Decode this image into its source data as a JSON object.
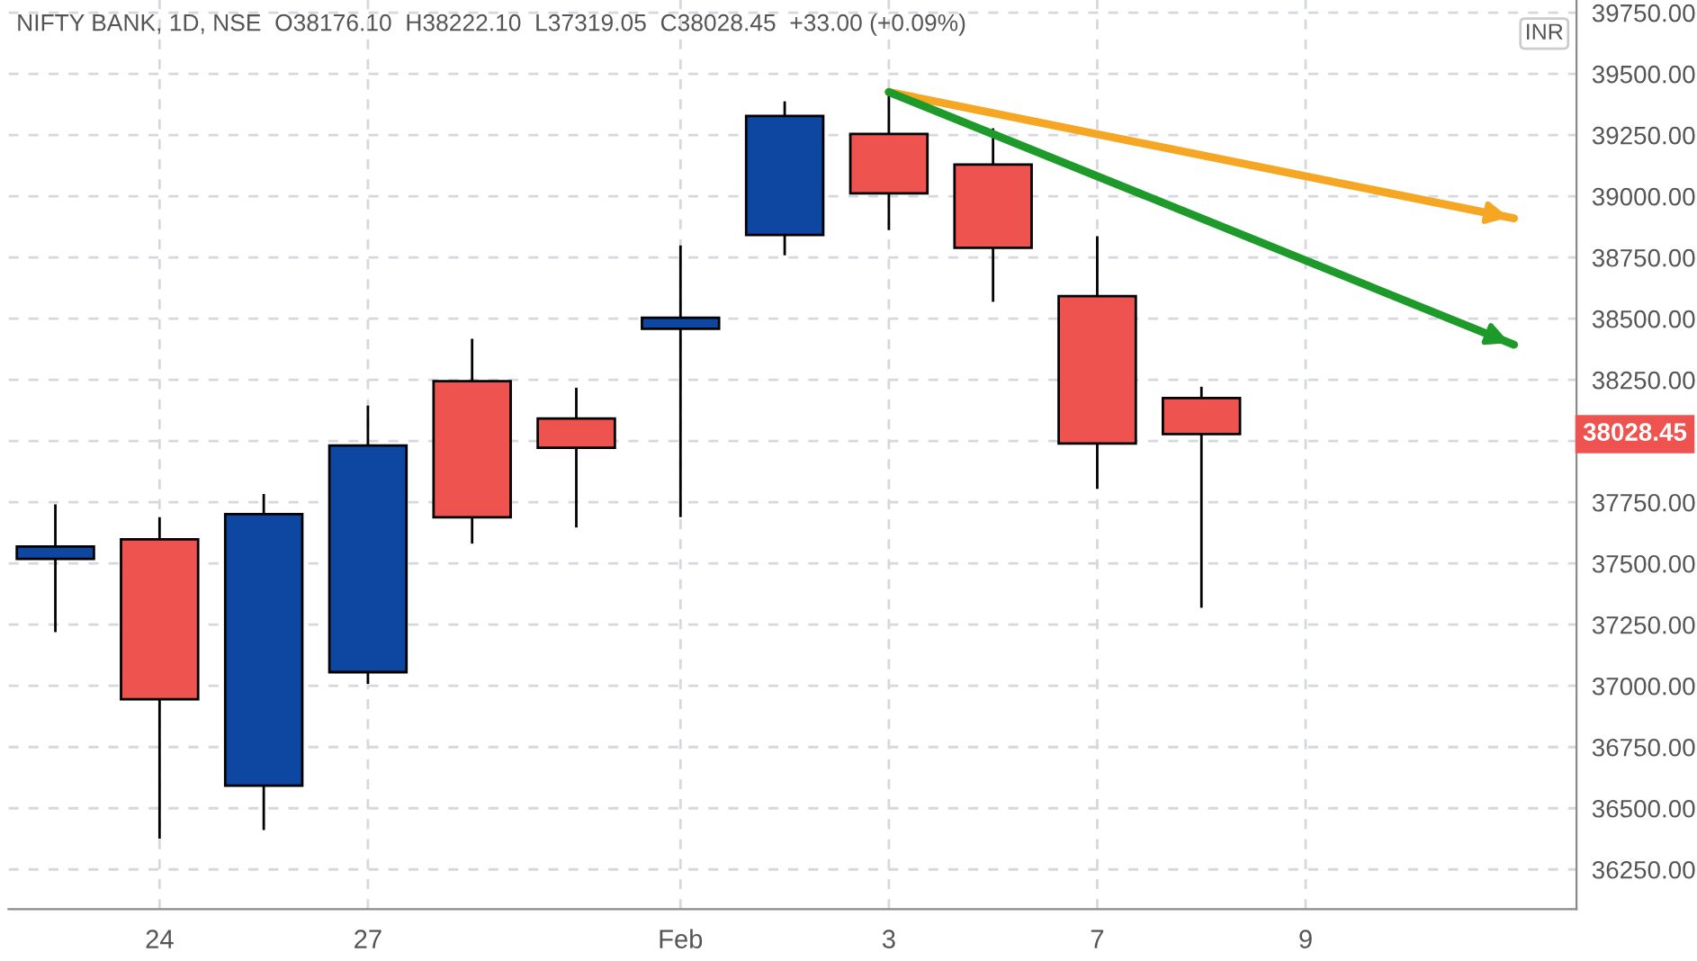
{
  "chart_data": {
    "type": "candlestick",
    "title": "NIFTY BANK, 1D, NSE  O38176.10  H38222.10  L37319.05  C38028.45  +33.00 (+0.09%)",
    "categories": [
      null,
      "24",
      null,
      "27",
      null,
      null,
      "Feb",
      null,
      "3",
      null,
      "7",
      null,
      "9",
      null,
      null
    ],
    "ohlc": [
      [
        37519,
        37742,
        37220,
        37569
      ],
      [
        37599,
        37689,
        36376,
        36945
      ],
      [
        36592,
        37784,
        36411,
        37702
      ],
      [
        37056,
        38145,
        37008,
        37982
      ],
      [
        38245,
        38418,
        37581,
        37689
      ],
      [
        38092,
        38218,
        37647,
        37973
      ],
      [
        38459,
        38799,
        37689,
        38504
      ],
      [
        38842,
        39388,
        38759,
        39328
      ],
      [
        39255,
        39426,
        38862,
        39012
      ],
      [
        39130,
        39278,
        38569,
        38790
      ],
      [
        38592,
        38837,
        37805,
        37990
      ],
      [
        38176.1,
        38222.1,
        37319.05,
        38028.45
      ],
      null,
      null,
      null
    ],
    "series": [
      {
        "type": "line",
        "color": "#f5a623",
        "values": [
          null,
          null,
          null,
          null,
          null,
          null,
          null,
          null,
          39426,
          null,
          null,
          null,
          null,
          null,
          38910
        ]
      },
      {
        "type": "line",
        "color": "#1e9a2a",
        "values": [
          null,
          null,
          null,
          null,
          null,
          null,
          null,
          null,
          39426,
          null,
          null,
          null,
          null,
          null,
          38394
        ]
      }
    ],
    "ylim": [
      36088,
      39802
    ],
    "yticks": [
      {
        "value": 36250,
        "label": "36250.00"
      },
      {
        "value": 36500,
        "label": "36500.00"
      },
      {
        "value": 36750,
        "label": "36750.00"
      },
      {
        "value": 37000,
        "label": "37000.00"
      },
      {
        "value": 37250,
        "label": "37250.00"
      },
      {
        "value": 37500,
        "label": "37500.00"
      },
      {
        "value": 37750,
        "label": "37750.00"
      },
      {
        "value": 38000,
        "label": null
      },
      {
        "value": 38250,
        "label": "38250.00"
      },
      {
        "value": 38500,
        "label": "38500.00"
      },
      {
        "value": 38750,
        "label": "38750.00"
      },
      {
        "value": 39000,
        "label": "39000.00"
      },
      {
        "value": 39250,
        "label": "39250.00"
      },
      {
        "value": 39500,
        "label": "39500.00"
      },
      {
        "value": 39750,
        "label": "39750.00"
      }
    ],
    "annotations": [
      "INR",
      "38028.45"
    ],
    "colors": [
      "#0d47a1",
      "#ef5350",
      "#0d47a1",
      "#0d47a1",
      "#ef5350",
      "#ef5350",
      "#0d47a1",
      "#0d47a1",
      "#ef5350",
      "#ef5350",
      "#ef5350",
      "#ef5350",
      null,
      null,
      null
    ],
    "grid": true,
    "line_style": "solid"
  }
}
